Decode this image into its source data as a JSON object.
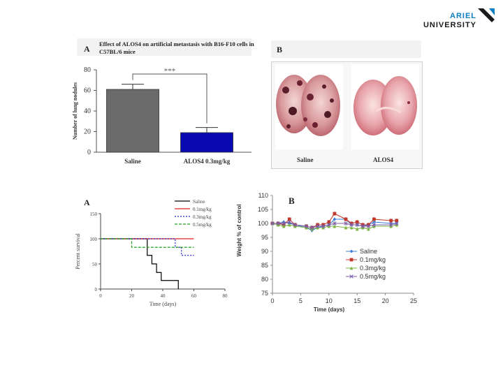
{
  "logo": {
    "line1": "ARIEL",
    "line2": "UNIVERSITY"
  },
  "chart_data": [
    {
      "type": "bar",
      "panel": "A",
      "title": "Effect of          ALOS4 on artificial metastasis with B16-F10 cells in C57BL/6 mice",
      "categories": [
        "Saline",
        "ALOS4 0.3mg/kg"
      ],
      "values": [
        61,
        19
      ],
      "errors": [
        5,
        5
      ],
      "colors": [
        "#6b6b6b",
        "#0a0ab4"
      ],
      "ylabel": "Number of lung nodules",
      "ylim": [
        0,
        80
      ],
      "yticks": [
        0,
        20,
        40,
        60,
        80
      ],
      "significance": "***"
    },
    {
      "type": "image",
      "panel": "B",
      "labels": [
        "Saline",
        "ALOS4"
      ]
    },
    {
      "type": "line",
      "panel": "A",
      "xlabel": "Time (days)",
      "ylabel": "Percent survival",
      "xlim": [
        0,
        80
      ],
      "ylim": [
        0,
        150
      ],
      "xticks": [
        0,
        20,
        40,
        60,
        80
      ],
      "yticks": [
        0,
        50,
        100,
        150
      ],
      "series": [
        {
          "name": "Saline",
          "color": "#000000",
          "dash": "solid",
          "x": [
            0,
            30,
            30,
            33,
            33,
            36,
            36,
            39,
            39,
            50,
            50
          ],
          "y": [
            100,
            100,
            67,
            67,
            50,
            50,
            33,
            33,
            17,
            17,
            0
          ]
        },
        {
          "name": "0.1mg/kg",
          "color": "#e02020",
          "dash": "solid",
          "x": [
            0,
            60
          ],
          "y": [
            100,
            100
          ]
        },
        {
          "name": "0.3mg/kg",
          "color": "#2020d0",
          "dash": "dotted",
          "x": [
            0,
            48,
            48,
            52,
            52,
            60
          ],
          "y": [
            100,
            100,
            83,
            83,
            67,
            67
          ]
        },
        {
          "name": "0.5mg/kg",
          "color": "#20a020",
          "dash": "dashed",
          "x": [
            0,
            20,
            20,
            60
          ],
          "y": [
            100,
            100,
            83,
            83
          ]
        }
      ]
    },
    {
      "type": "line",
      "panel": "B",
      "xlabel": "Time (days)",
      "ylabel": "Weight % of control",
      "xlim": [
        0,
        25
      ],
      "ylim": [
        75,
        110
      ],
      "xticks": [
        0,
        5,
        10,
        15,
        20,
        25
      ],
      "yticks": [
        75,
        80,
        85,
        90,
        95,
        100,
        105,
        110
      ],
      "series": [
        {
          "name": "Saline",
          "color": "#3a7bd5",
          "marker": "diamond",
          "x": [
            0,
            1,
            2,
            3,
            4,
            6,
            7,
            8,
            9,
            10,
            11,
            13,
            14,
            15,
            16,
            17,
            18,
            21,
            22
          ],
          "y": [
            100,
            100,
            100.5,
            100,
            99.5,
            98.5,
            97.5,
            98.5,
            99,
            99.5,
            101.5,
            101.5,
            99.5,
            99.5,
            99,
            99.5,
            100.5,
            100,
            100
          ]
        },
        {
          "name": "0.1mg/kg",
          "color": "#c0392b",
          "marker": "square",
          "x": [
            0,
            1,
            2,
            3,
            4,
            6,
            7,
            8,
            9,
            10,
            11,
            13,
            14,
            15,
            16,
            17,
            18,
            21,
            22
          ],
          "y": [
            100,
            100,
            99.5,
            101.5,
            99.5,
            99,
            98.5,
            99.5,
            99.5,
            100.5,
            103.5,
            101.5,
            100,
            100.5,
            99.5,
            99.5,
            101.5,
            101,
            101
          ]
        },
        {
          "name": "0.3mg/kg",
          "color": "#7cb342",
          "marker": "triangle",
          "x": [
            0,
            1,
            2,
            3,
            4,
            6,
            7,
            8,
            9,
            10,
            11,
            13,
            14,
            15,
            16,
            17,
            18,
            21,
            22
          ],
          "y": [
            100,
            99.5,
            99,
            99.5,
            99,
            98.5,
            98,
            98.5,
            98.5,
            99,
            99,
            98.5,
            98.5,
            98,
            98.5,
            98,
            99,
            99,
            99.5
          ]
        },
        {
          "name": "0.5mg/kg",
          "color": "#7b5ea7",
          "marker": "x",
          "x": [
            0,
            1,
            2,
            3,
            4,
            6,
            7,
            8,
            9,
            10,
            11,
            13,
            14,
            15,
            16,
            17,
            18,
            21,
            22
          ],
          "y": [
            100,
            100,
            100,
            100.5,
            99.5,
            99,
            98.5,
            99,
            99,
            99.5,
            100,
            100,
            99.5,
            99.5,
            99,
            99,
            99.5,
            99.5,
            100
          ]
        }
      ]
    }
  ]
}
